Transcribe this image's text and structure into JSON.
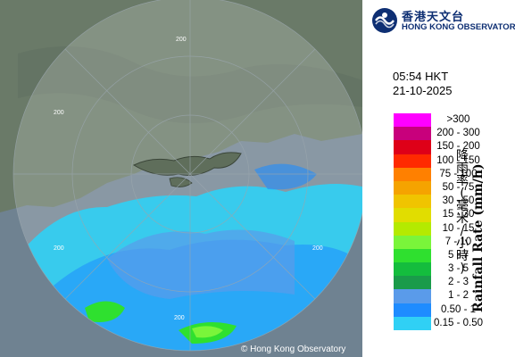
{
  "header": {
    "org_name_zh": "香港天文台",
    "org_name_en": "HONG KONG OBSERVATORY"
  },
  "timestamp": {
    "time": "05:54 HKT",
    "date": "21-10-2025"
  },
  "legend": {
    "unit_zh": "降雨率(毫米/小時)",
    "unit_en": "Rainfall Rate (mm/h)",
    "classes": [
      {
        "label": ">300",
        "color": "#ff00ff"
      },
      {
        "label": "200 - 300",
        "color": "#c8007c"
      },
      {
        "label": "150 - 200",
        "color": "#de0018"
      },
      {
        "label": "100 - 150",
        "color": "#ff2a00"
      },
      {
        "label": "75 - 100",
        "color": "#ff8000"
      },
      {
        "label": "50 - 75",
        "color": "#f5a300"
      },
      {
        "label": "30 - 50",
        "color": "#f0c400"
      },
      {
        "label": "15 - 30",
        "color": "#e1dd00"
      },
      {
        "label": "10 - 15",
        "color": "#b4ea00"
      },
      {
        "label": "7 - 10",
        "color": "#7af53a"
      },
      {
        "label": "5 - 7",
        "color": "#2fe02f"
      },
      {
        "label": "3 - 5",
        "color": "#14bd3d"
      },
      {
        "label": "2 - 3",
        "color": "#1a9b4a"
      },
      {
        "label": "1 - 2",
        "color": "#5a9bea"
      },
      {
        "label": "0.50 - 1",
        "color": "#1e8cff"
      },
      {
        "label": "0.15 - 0.50",
        "color": "#30d0f5"
      }
    ]
  },
  "map": {
    "range_labels": [
      "200",
      "200",
      "200",
      "200",
      "200"
    ],
    "copyright": "© Hong Kong Observatory"
  }
}
